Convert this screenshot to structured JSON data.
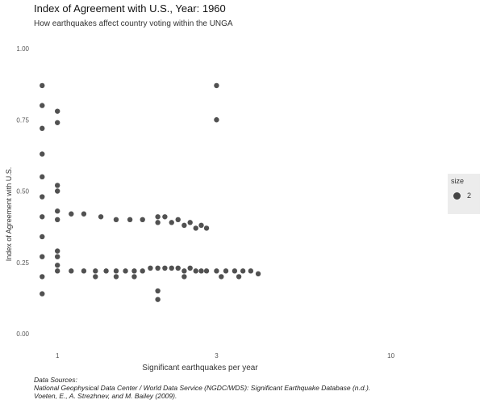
{
  "chart_data": {
    "type": "scatter",
    "title": "Index of Agreement with U.S., Year: 1960",
    "subtitle": "How earthquakes affect country voting within the UNGA",
    "xlabel": "Significant earthquakes per year",
    "ylabel": "Index of Agreement with U.S.",
    "x_scale": "log10",
    "xlim": [
      0.85,
      14
    ],
    "ylim": [
      0,
      1
    ],
    "x_ticks": [
      1,
      3,
      10
    ],
    "x_tick_labels": [
      "1",
      "3",
      "10"
    ],
    "y_ticks": [
      0,
      0.25,
      0.5,
      0.75,
      1
    ],
    "y_tick_labels": [
      "0.00",
      "0.25",
      "0.50",
      "0.75",
      "1.00"
    ],
    "grid": false,
    "legend": {
      "title": "size",
      "position": "right",
      "entries": [
        {
          "label": "2"
        }
      ]
    },
    "series": [
      {
        "points": [
          {
            "x": 0.9,
            "y": 0.87
          },
          {
            "x": 0.9,
            "y": 0.8
          },
          {
            "x": 0.9,
            "y": 0.72
          },
          {
            "x": 0.9,
            "y": 0.63
          },
          {
            "x": 0.9,
            "y": 0.55
          },
          {
            "x": 0.9,
            "y": 0.48
          },
          {
            "x": 0.9,
            "y": 0.41
          },
          {
            "x": 0.9,
            "y": 0.34
          },
          {
            "x": 0.9,
            "y": 0.27
          },
          {
            "x": 0.9,
            "y": 0.2
          },
          {
            "x": 0.9,
            "y": 0.14
          },
          {
            "x": 1,
            "y": 0.78
          },
          {
            "x": 1,
            "y": 0.74
          },
          {
            "x": 1,
            "y": 0.52
          },
          {
            "x": 1,
            "y": 0.5
          },
          {
            "x": 1,
            "y": 0.43
          },
          {
            "x": 1,
            "y": 0.4
          },
          {
            "x": 1,
            "y": 0.29
          },
          {
            "x": 1,
            "y": 0.27
          },
          {
            "x": 1,
            "y": 0.24
          },
          {
            "x": 1,
            "y": 0.22
          },
          {
            "x": 1.1,
            "y": 0.42
          },
          {
            "x": 1.2,
            "y": 0.42
          },
          {
            "x": 1.35,
            "y": 0.41
          },
          {
            "x": 1.5,
            "y": 0.4
          },
          {
            "x": 1.65,
            "y": 0.4
          },
          {
            "x": 1.8,
            "y": 0.4
          },
          {
            "x": 2,
            "y": 0.39
          },
          {
            "x": 2.2,
            "y": 0.39
          },
          {
            "x": 2.4,
            "y": 0.38
          },
          {
            "x": 2.6,
            "y": 0.37
          },
          {
            "x": 2.8,
            "y": 0.37
          },
          {
            "x": 2,
            "y": 0.41
          },
          {
            "x": 2.1,
            "y": 0.41
          },
          {
            "x": 2.3,
            "y": 0.4
          },
          {
            "x": 2.5,
            "y": 0.39
          },
          {
            "x": 2.7,
            "y": 0.38
          },
          {
            "x": 1.1,
            "y": 0.22
          },
          {
            "x": 1.2,
            "y": 0.22
          },
          {
            "x": 1.3,
            "y": 0.22
          },
          {
            "x": 1.4,
            "y": 0.22
          },
          {
            "x": 1.5,
            "y": 0.22
          },
          {
            "x": 1.6,
            "y": 0.22
          },
          {
            "x": 1.7,
            "y": 0.22
          },
          {
            "x": 1.8,
            "y": 0.22
          },
          {
            "x": 1.9,
            "y": 0.23
          },
          {
            "x": 2,
            "y": 0.23
          },
          {
            "x": 2.1,
            "y": 0.23
          },
          {
            "x": 2.2,
            "y": 0.23
          },
          {
            "x": 2.3,
            "y": 0.23
          },
          {
            "x": 2.4,
            "y": 0.22
          },
          {
            "x": 2.5,
            "y": 0.23
          },
          {
            "x": 2.6,
            "y": 0.22
          },
          {
            "x": 2.7,
            "y": 0.22
          },
          {
            "x": 2.8,
            "y": 0.22
          },
          {
            "x": 3,
            "y": 0.22
          },
          {
            "x": 3.2,
            "y": 0.22
          },
          {
            "x": 3.4,
            "y": 0.22
          },
          {
            "x": 3.6,
            "y": 0.22
          },
          {
            "x": 3.8,
            "y": 0.22
          },
          {
            "x": 4,
            "y": 0.21
          },
          {
            "x": 1.3,
            "y": 0.2
          },
          {
            "x": 1.5,
            "y": 0.2
          },
          {
            "x": 1.7,
            "y": 0.2
          },
          {
            "x": 2.4,
            "y": 0.2
          },
          {
            "x": 3.1,
            "y": 0.2
          },
          {
            "x": 3.5,
            "y": 0.2
          },
          {
            "x": 2,
            "y": 0.15
          },
          {
            "x": 2,
            "y": 0.12
          },
          {
            "x": 3,
            "y": 0.87
          },
          {
            "x": 3,
            "y": 0.75
          }
        ]
      }
    ]
  },
  "caption": {
    "lines": [
      "Data Sources:",
      "National Geophysical Data Center / World Data Service (NGDC/WDS): Significant Earthquake Database (n.d.).",
      "Voeten, E., A. Strezhnev, and M. Bailey (2009)."
    ]
  },
  "colors": {
    "point": "#333333",
    "legend_bg": "#ececec",
    "axis_text": "#555555"
  }
}
